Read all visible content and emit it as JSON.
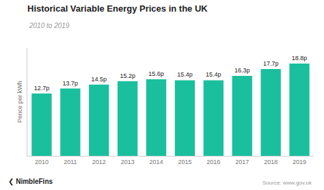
{
  "chart_data": {
    "type": "bar",
    "title": "Historical Variable Energy Prices in the UK",
    "subtitle": "2010 to 2019",
    "ylabel": "Pence per kWh",
    "categories": [
      "2010",
      "2011",
      "2012",
      "2013",
      "2014",
      "2015",
      "2016",
      "2017",
      "2018",
      "2019"
    ],
    "values": [
      12.7,
      13.7,
      14.5,
      15.2,
      15.6,
      15.4,
      15.4,
      16.3,
      17.7,
      18.8
    ],
    "value_labels": [
      "12.7p",
      "13.7p",
      "14.5p",
      "15.2p",
      "15.6p",
      "15.4p",
      "15.4p",
      "16.3p",
      "17.7p",
      "18.8p"
    ],
    "data_labels": true,
    "color": "#1abf9e",
    "ylim": [
      0,
      22
    ],
    "grid": false,
    "tick_labels": "x",
    "annotations": [
      "❮ NimbleFins",
      "Source: www.gov.uk"
    ]
  }
}
